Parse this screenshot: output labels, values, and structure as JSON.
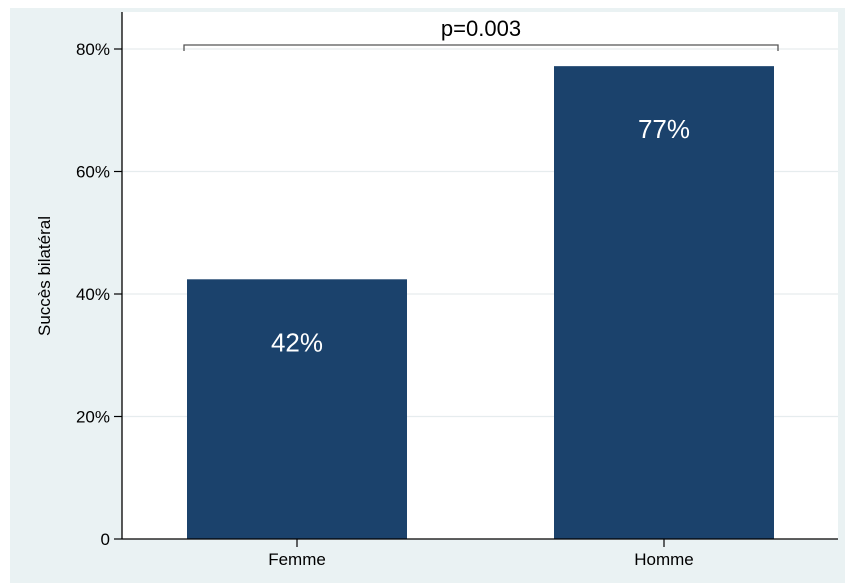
{
  "chart_data": {
    "type": "bar",
    "categories": [
      "Femme",
      "Homme"
    ],
    "values": [
      42.4,
      77.2
    ],
    "data_labels": [
      "42%",
      "77%"
    ],
    "title": "",
    "xlabel": "",
    "ylabel": "Succès bilatéral",
    "ylim": [
      0,
      80
    ],
    "yticks": [
      0,
      20,
      40,
      60,
      80
    ],
    "ytick_labels": [
      "0",
      "20%",
      "40%",
      "60%",
      "80%"
    ],
    "grid": true,
    "legend": "none",
    "annotation": {
      "text": "p=0.003",
      "type": "bracket",
      "between": [
        "Femme",
        "Homme"
      ]
    },
    "colors": {
      "bar": "#1b426c",
      "plot_background": "#ffffff",
      "outer_background": "#eaf2f3",
      "grid": "#e6ecee"
    }
  }
}
